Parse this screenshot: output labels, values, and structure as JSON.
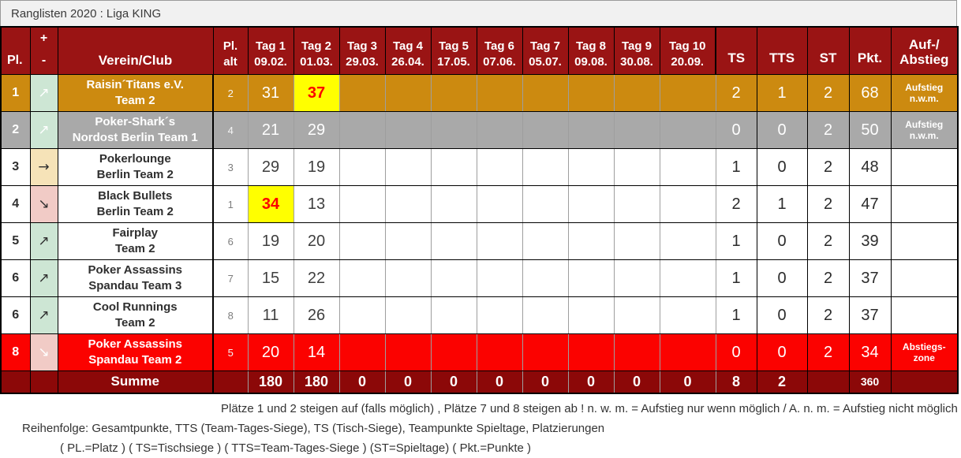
{
  "title": "Ranglisten 2020 : Liga KING",
  "colors": {
    "header_bg": "#9a1414",
    "gold": "#cc8a10",
    "gray": "#a9a9a9",
    "red": "#fb0200",
    "summe_bg": "#8c0808",
    "mint": "#cde6d4",
    "tan": "#f6e3b8",
    "pink": "#f1cbc6",
    "highlight_yellow": "#ffff00",
    "highlight_text": "#fb0000"
  },
  "trend_symbols": {
    "up": "↗",
    "right": "→",
    "down": "↘"
  },
  "header": {
    "pl": "Pl.",
    "plus_minus": "+\n-",
    "club": "Verein/Club",
    "pl_alt": "Pl.\nalt",
    "days": [
      "Tag 1\n09.02.",
      "Tag 2\n01.03.",
      "Tag 3\n29.03.",
      "Tag 4\n26.04.",
      "Tag 5\n17.05.",
      "Tag 6\n07.06.",
      "Tag 7\n05.07.",
      "Tag 8\n09.08.",
      "Tag 9\n30.08.",
      "Tag 10\n20.09."
    ],
    "ts": "TS",
    "tts": "TTS",
    "st": "ST",
    "pkt": "Pkt.",
    "auf_abstieg": "Auf-/\nAbstieg"
  },
  "rows": [
    {
      "pl": "1",
      "trend": "up",
      "club": "Raisin´Titans e.V.\nTeam 2",
      "pl_alt": "2",
      "days": [
        "31",
        "37",
        "",
        "",
        "",
        "",
        "",
        "",
        "",
        ""
      ],
      "highlight_day": 1,
      "ts": "2",
      "tts": "1",
      "st": "2",
      "pkt": "68",
      "auf_abstieg": "Aufstieg\nn.w.m.",
      "style": "gold"
    },
    {
      "pl": "2",
      "trend": "up",
      "club": "Poker-Shark´s\nNordost Berlin Team 1",
      "pl_alt": "4",
      "days": [
        "21",
        "29",
        "",
        "",
        "",
        "",
        "",
        "",
        "",
        ""
      ],
      "highlight_day": null,
      "ts": "0",
      "tts": "0",
      "st": "2",
      "pkt": "50",
      "auf_abstieg": "Aufstieg\nn.w.m.",
      "style": "gray"
    },
    {
      "pl": "3",
      "trend": "right",
      "club": "Pokerlounge\nBerlin Team 2",
      "pl_alt": "3",
      "days": [
        "29",
        "19",
        "",
        "",
        "",
        "",
        "",
        "",
        "",
        ""
      ],
      "highlight_day": null,
      "ts": "1",
      "tts": "0",
      "st": "2",
      "pkt": "48",
      "auf_abstieg": "",
      "style": "white"
    },
    {
      "pl": "4",
      "trend": "down",
      "club": "Black Bullets\nBerlin Team 2",
      "pl_alt": "1",
      "days": [
        "34",
        "13",
        "",
        "",
        "",
        "",
        "",
        "",
        "",
        ""
      ],
      "highlight_day": 0,
      "ts": "2",
      "tts": "1",
      "st": "2",
      "pkt": "47",
      "auf_abstieg": "",
      "style": "white"
    },
    {
      "pl": "5",
      "trend": "up",
      "club": "Fairplay\nTeam 2",
      "pl_alt": "6",
      "days": [
        "19",
        "20",
        "",
        "",
        "",
        "",
        "",
        "",
        "",
        ""
      ],
      "highlight_day": null,
      "ts": "1",
      "tts": "0",
      "st": "2",
      "pkt": "39",
      "auf_abstieg": "",
      "style": "white"
    },
    {
      "pl": "6",
      "trend": "up",
      "club": "Poker Assassins\nSpandau Team 3",
      "pl_alt": "7",
      "days": [
        "15",
        "22",
        "",
        "",
        "",
        "",
        "",
        "",
        "",
        ""
      ],
      "highlight_day": null,
      "ts": "1",
      "tts": "0",
      "st": "2",
      "pkt": "37",
      "auf_abstieg": "",
      "style": "white"
    },
    {
      "pl": "6",
      "trend": "up",
      "club": "Cool Runnings\nTeam 2",
      "pl_alt": "8",
      "days": [
        "11",
        "26",
        "",
        "",
        "",
        "",
        "",
        "",
        "",
        ""
      ],
      "highlight_day": null,
      "ts": "1",
      "tts": "0",
      "st": "2",
      "pkt": "37",
      "auf_abstieg": "",
      "style": "white"
    },
    {
      "pl": "8",
      "trend": "down",
      "club": "Poker Assassins\nSpandau Team 2",
      "pl_alt": "5",
      "days": [
        "20",
        "14",
        "",
        "",
        "",
        "",
        "",
        "",
        "",
        ""
      ],
      "highlight_day": null,
      "ts": "0",
      "tts": "0",
      "st": "2",
      "pkt": "34",
      "auf_abstieg": "Abstiegs-\nzone",
      "style": "red"
    }
  ],
  "summe": {
    "label": "Summe",
    "days": [
      "180",
      "180",
      "0",
      "0",
      "0",
      "0",
      "0",
      "0",
      "0",
      "0"
    ],
    "ts": "8",
    "tts": "2",
    "st": "",
    "pkt": "360",
    "auf_abstieg": ""
  },
  "footer": {
    "line1": "Plätze 1 und 2 steigen auf (falls möglich) , Plätze 7 und 8 steigen ab ! n. w. m. = Aufstieg nur wenn möglich / A. n. m. = Aufstieg nicht möglich",
    "line2": "Reihenfolge: Gesamtpunkte, TTS (Team-Tages-Siege), TS (Tisch-Siege), Teampunkte Spieltage, Platzierungen",
    "line3": "( PL.=Platz ) ( TS=Tischsiege ) ( TTS=Team-Tages-Siege ) (ST=Spieltage) ( Pkt.=Punkte )"
  }
}
